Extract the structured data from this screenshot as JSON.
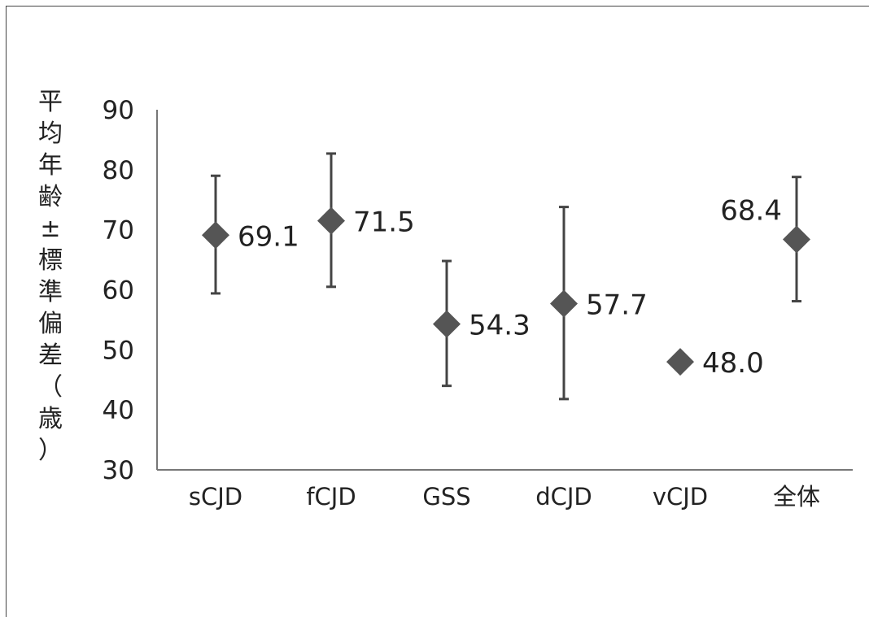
{
  "chart_data": {
    "type": "scatter",
    "title": "",
    "xlabel": "",
    "ylabel": "平均年齢±標準偏差（歳）",
    "ylim": [
      30,
      90
    ],
    "yticks": [
      30,
      40,
      50,
      60,
      70,
      80,
      90
    ],
    "categories": [
      "sCJD",
      "fCJD",
      "GSS",
      "dCJD",
      "vCJD",
      "全体"
    ],
    "values": [
      69.1,
      71.5,
      54.3,
      57.7,
      48.0,
      68.4
    ],
    "value_labels": [
      "69.1",
      "71.5",
      "54.3",
      "57.7",
      "48.0",
      "68.4"
    ],
    "error_low": [
      59.4,
      60.5,
      44.0,
      41.8,
      null,
      58.1
    ],
    "error_high": [
      79.0,
      82.7,
      64.8,
      73.8,
      null,
      78.8
    ],
    "marker": "diamond",
    "marker_color": "#555555",
    "grid": false
  }
}
